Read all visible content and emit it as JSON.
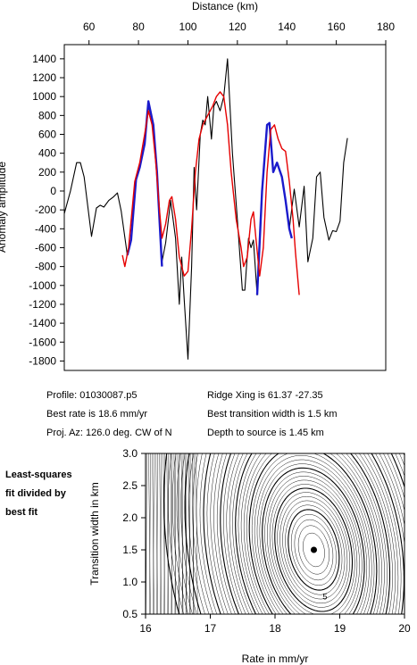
{
  "chart_data": [
    {
      "type": "line",
      "xlabel": "Distance (km)",
      "ylabel": "Anomaly amplitude",
      "xlim": [
        50,
        180
      ],
      "ylim": [
        -1900,
        1550
      ],
      "x_ticks": [
        60,
        80,
        100,
        120,
        140,
        160,
        180
      ],
      "y_ticks": [
        1400,
        1200,
        1000,
        800,
        600,
        400,
        200,
        0,
        -200,
        -400,
        -600,
        -800,
        -1000,
        -1200,
        -1400,
        -1600,
        -1800
      ],
      "x_axis_position": "top",
      "series": [
        {
          "color": "#000000",
          "style": "observed",
          "points": [
            [
              50,
              -240
            ],
            [
              52.5,
              0
            ],
            [
              55,
              300
            ],
            [
              56.5,
              300
            ],
            [
              58,
              150
            ],
            [
              61,
              -480
            ],
            [
              63,
              -180
            ],
            [
              64.5,
              -150
            ],
            [
              66,
              -170
            ],
            [
              68,
              -100
            ],
            [
              70,
              -60
            ],
            [
              71.5,
              -20
            ],
            [
              73,
              -210
            ],
            [
              75.5,
              -680
            ],
            [
              77,
              -520
            ],
            [
              79,
              120
            ],
            [
              80.5,
              250
            ],
            [
              82.5,
              500
            ],
            [
              84,
              900
            ],
            [
              86,
              700
            ],
            [
              87.5,
              200
            ],
            [
              89.5,
              -750
            ],
            [
              91,
              -550
            ],
            [
              93,
              -100
            ],
            [
              95,
              -500
            ],
            [
              96.5,
              -1200
            ],
            [
              97.5,
              -700
            ],
            [
              98.5,
              -1150
            ],
            [
              100,
              -1780
            ],
            [
              101.5,
              -800
            ],
            [
              102.5,
              250
            ],
            [
              103.5,
              -200
            ],
            [
              105,
              600
            ],
            [
              106,
              750
            ],
            [
              107,
              700
            ],
            [
              108,
              1000
            ],
            [
              109.5,
              550
            ],
            [
              110.5,
              900
            ],
            [
              111.5,
              950
            ],
            [
              113,
              850
            ],
            [
              114.5,
              1000
            ],
            [
              116,
              1400
            ],
            [
              118,
              400
            ],
            [
              120,
              -300
            ],
            [
              122,
              -1050
            ],
            [
              123,
              -1050
            ],
            [
              124.5,
              -500
            ],
            [
              125.5,
              -600
            ],
            [
              126.5,
              -520
            ],
            [
              128,
              -1100
            ],
            [
              130,
              0
            ],
            [
              132,
              700
            ],
            [
              133,
              720
            ],
            [
              134.5,
              200
            ],
            [
              136,
              300
            ],
            [
              138,
              150
            ],
            [
              139.5,
              -100
            ],
            [
              141,
              -400
            ],
            [
              143,
              20
            ],
            [
              145,
              -380
            ],
            [
              147,
              50
            ],
            [
              148.5,
              -750
            ],
            [
              150.5,
              -500
            ],
            [
              152,
              150
            ],
            [
              153.5,
              200
            ],
            [
              155,
              -280
            ],
            [
              157,
              -520
            ],
            [
              158.5,
              -420
            ],
            [
              160,
              -430
            ],
            [
              161.5,
              -320
            ],
            [
              163,
              300
            ],
            [
              164.5,
              560
            ]
          ]
        },
        {
          "color": "#1a1acc",
          "style": "fit",
          "points": [
            [
              75.5,
              -680
            ],
            [
              77,
              -520
            ],
            [
              79,
              120
            ],
            [
              80.5,
              250
            ],
            [
              82.5,
              500
            ],
            [
              84,
              950
            ],
            [
              86,
              700
            ],
            [
              87.5,
              200
            ],
            [
              89.5,
              -800
            ]
          ]
        },
        {
          "color": "#1a1acc",
          "style": "fit",
          "points": [
            [
              128,
              -1100
            ],
            [
              130,
              0
            ],
            [
              132,
              700
            ],
            [
              133,
              720
            ],
            [
              134.5,
              200
            ],
            [
              136,
              300
            ],
            [
              138,
              150
            ],
            [
              139.5,
              -100
            ],
            [
              141,
              -400
            ],
            [
              142,
              -500
            ]
          ]
        },
        {
          "color": "#e60000",
          "style": "model",
          "points": [
            [
              73.5,
              -680
            ],
            [
              74.5,
              -800
            ],
            [
              76,
              -600
            ],
            [
              78.5,
              100
            ],
            [
              80.5,
              300
            ],
            [
              82.5,
              600
            ],
            [
              84,
              850
            ],
            [
              85.5,
              700
            ],
            [
              87,
              300
            ],
            [
              88.5,
              -200
            ],
            [
              89.5,
              -500
            ],
            [
              91,
              -350
            ],
            [
              92.5,
              -100
            ],
            [
              93.5,
              -60
            ],
            [
              95,
              -300
            ],
            [
              96.5,
              -700
            ],
            [
              98.5,
              -900
            ],
            [
              100,
              -850
            ],
            [
              101.5,
              -400
            ],
            [
              103,
              200
            ],
            [
              104.5,
              550
            ],
            [
              106,
              700
            ],
            [
              108,
              800
            ],
            [
              110,
              900
            ],
            [
              111.5,
              1000
            ],
            [
              113,
              1050
            ],
            [
              114.5,
              1000
            ],
            [
              116,
              700
            ],
            [
              117.5,
              200
            ],
            [
              119.5,
              -300
            ],
            [
              121.5,
              -600
            ],
            [
              122.5,
              -800
            ],
            [
              124,
              -700
            ],
            [
              125.5,
              -300
            ],
            [
              126.5,
              -220
            ],
            [
              127.5,
              -500
            ],
            [
              129,
              -900
            ],
            [
              130.5,
              -600
            ],
            [
              132,
              200
            ],
            [
              133.5,
              650
            ],
            [
              135,
              700
            ],
            [
              136.5,
              550
            ],
            [
              138,
              450
            ],
            [
              139.5,
              420
            ],
            [
              141,
              100
            ],
            [
              142.5,
              -300
            ],
            [
              143.5,
              -650
            ],
            [
              145,
              -1100
            ]
          ]
        }
      ]
    },
    {
      "type": "contour",
      "xlabel": "Rate in mm/yr",
      "ylabel": "Transition width in km",
      "xlim": [
        16,
        20
      ],
      "ylim": [
        0.5,
        3.0
      ],
      "x_ticks": [
        16,
        17,
        18,
        19,
        20
      ],
      "y_ticks": [
        3.0,
        2.5,
        2.0,
        1.5,
        1.0,
        0.5
      ],
      "minimum": {
        "x": 18.6,
        "y": 1.5
      },
      "contour_label": "5"
    }
  ],
  "info": {
    "profile": "Profile: 01030087.p5",
    "best_rate": "Best rate is 18.6 mm/yr",
    "proj_az": "Proj. Az: 126.0 deg. CW of N",
    "ridge_xing": "Ridge Xing is 61.37 -27.35",
    "best_width": "Best transition width is 1.5 km",
    "depth": "Depth to source is   1.45 km"
  },
  "side_label": {
    "line1": "Least-squares",
    "line2": "fit divided by",
    "line3": "best fit"
  }
}
